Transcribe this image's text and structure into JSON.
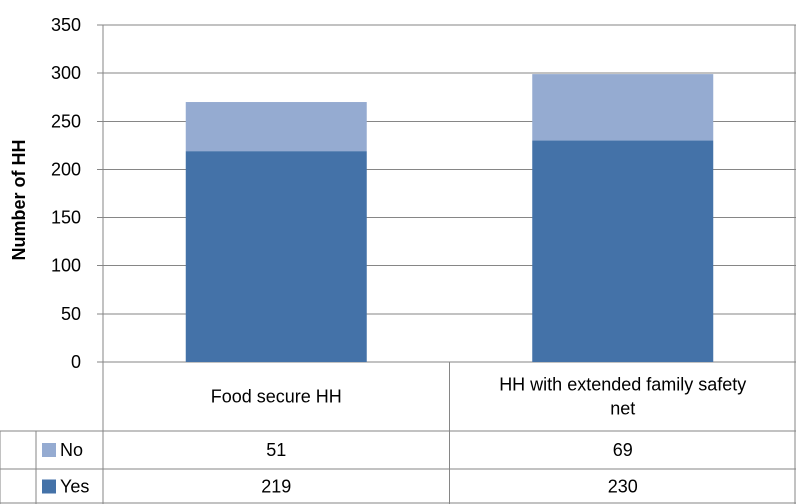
{
  "chart_data": {
    "type": "bar",
    "stacked": true,
    "categories": [
      "Food secure HH",
      "HH with extended family safety net"
    ],
    "series": [
      {
        "name": "Yes",
        "values": [
          219,
          230
        ],
        "color": "#4472A8"
      },
      {
        "name": "No",
        "values": [
          51,
          69
        ],
        "color": "#95ABD1"
      }
    ],
    "title": "",
    "xlabel": "",
    "ylabel": "Number of HH",
    "ylim": [
      0,
      350
    ],
    "yticks": [
      0,
      50,
      100,
      150,
      200,
      250,
      300,
      350
    ],
    "grid": true,
    "legend": "data-table"
  }
}
